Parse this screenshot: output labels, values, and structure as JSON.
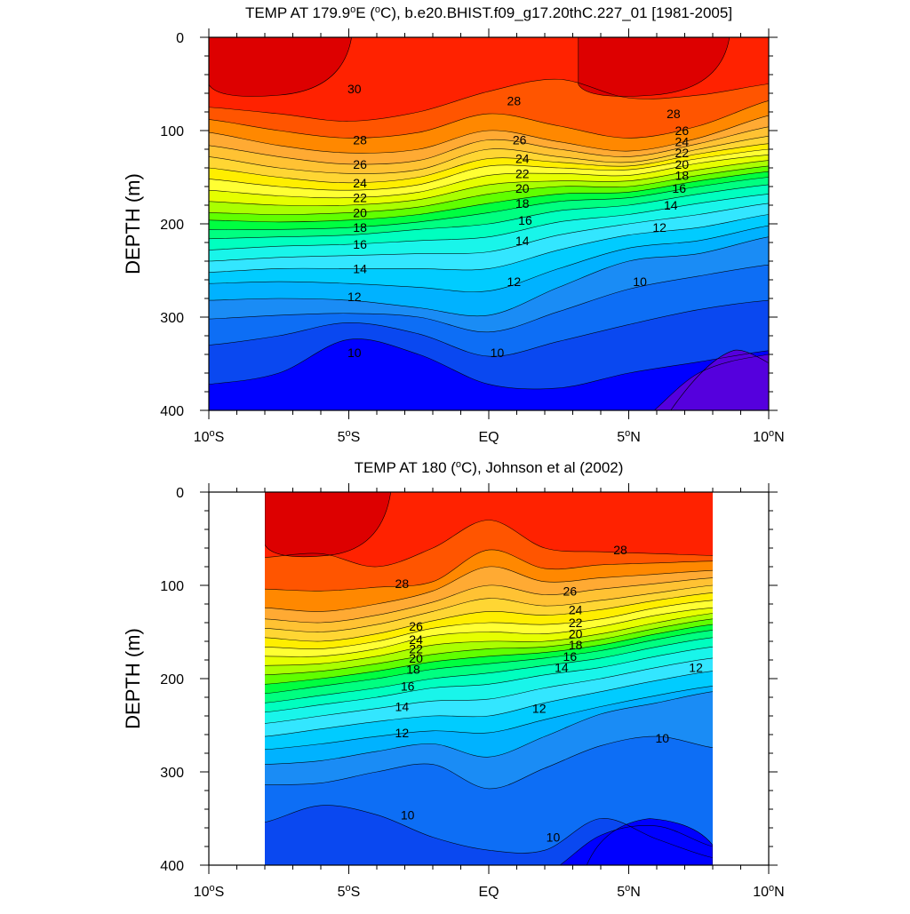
{
  "chart_data": [
    {
      "type": "contour",
      "title": "TEMP AT 179.9°E (°C), b.e20.BHIST.f09_g17.20thC.227_01 [1981-2005]",
      "ylabel": "DEPTH (m)",
      "xlabel": "",
      "xlim": [
        -10,
        10
      ],
      "ylim": [
        400,
        0
      ],
      "y_inverted": true,
      "x_ticks": [
        {
          "value": -10,
          "label": "10°S"
        },
        {
          "value": -5,
          "label": "5°S"
        },
        {
          "value": 0,
          "label": "EQ"
        },
        {
          "value": 5,
          "label": "5°N"
        },
        {
          "value": 10,
          "label": "10°N"
        }
      ],
      "y_ticks": [
        {
          "value": 0,
          "label": "0"
        },
        {
          "value": 100,
          "label": "100"
        },
        {
          "value": 200,
          "label": "200"
        },
        {
          "value": 300,
          "label": "300"
        },
        {
          "value": 400,
          "label": "400"
        }
      ],
      "data_extent_x": [
        -10,
        10
      ],
      "contour_interval": 1,
      "isotherm_depths": {
        "x": [
          -10,
          -7.5,
          -5,
          -2.5,
          0,
          2.5,
          5,
          7.5,
          10
        ],
        "series": [
          {
            "temp": 29,
            "depth": [
              75,
              82,
              90,
              80,
              58,
              45,
              65,
              62,
              50
            ]
          },
          {
            "temp": 28,
            "depth": [
              88,
              100,
              108,
              102,
              82,
              95,
              108,
              95,
              68
            ]
          },
          {
            "temp": 27,
            "depth": [
              102,
              116,
              124,
              120,
              100,
              112,
              122,
              108,
              84
            ]
          },
          {
            "temp": 26,
            "depth": [
              116,
              128,
              136,
              132,
              110,
              120,
              128,
              114,
              96
            ]
          },
          {
            "temp": 25,
            "depth": [
              128,
              140,
              146,
              142,
              120,
              128,
              134,
              120,
              106
            ]
          },
          {
            "temp": 24,
            "depth": [
              140,
              150,
              156,
              150,
              130,
              134,
              138,
              125,
              114
            ]
          },
          {
            "temp": 23,
            "depth": [
              152,
              160,
              164,
              158,
              138,
              140,
              142,
              130,
              120
            ]
          },
          {
            "temp": 22,
            "depth": [
              164,
              170,
              172,
              166,
              148,
              146,
              148,
              135,
              126
            ]
          },
          {
            "temp": 21,
            "depth": [
              176,
              180,
              180,
              174,
              158,
              154,
              154,
              142,
              132
            ]
          },
          {
            "temp": 20,
            "depth": [
              188,
              190,
              188,
              182,
              168,
              160,
              160,
              148,
              138
            ]
          },
          {
            "temp": 19,
            "depth": [
              196,
              198,
              196,
              190,
              178,
              168,
              166,
              154,
              144
            ]
          },
          {
            "temp": 18,
            "depth": [
              206,
              206,
              204,
              198,
              188,
              176,
              172,
              160,
              150
            ]
          },
          {
            "temp": 17,
            "depth": [
              216,
              214,
              212,
              206,
              200,
              186,
              180,
              168,
              158
            ]
          },
          {
            "temp": 16,
            "depth": [
              228,
              224,
              222,
              218,
              214,
              198,
              190,
              178,
              168
            ]
          },
          {
            "temp": 15,
            "depth": [
              240,
              236,
              234,
              232,
              230,
              212,
              200,
              190,
              178
            ]
          },
          {
            "temp": 14,
            "depth": [
              252,
              248,
              248,
              248,
              248,
              228,
              212,
              204,
              190
            ]
          },
          {
            "temp": 13,
            "depth": [
              264,
              262,
              264,
              268,
              272,
              248,
              226,
              218,
              202
            ]
          },
          {
            "temp": 12,
            "depth": [
              282,
              280,
              282,
              290,
              298,
              268,
              240,
              232,
              214
            ]
          },
          {
            "temp": 11,
            "depth": [
              302,
              298,
              296,
              300,
              316,
              294,
              270,
              256,
              244
            ]
          },
          {
            "temp": 10,
            "depth": [
              330,
              320,
              306,
              318,
              342,
              326,
              308,
              292,
              282
            ]
          },
          {
            "temp": 9,
            "depth": [
              372,
              360,
              324,
              340,
              372,
              376,
              360,
              348,
              336
            ]
          },
          {
            "temp": 8,
            "depth": [
              420,
              430,
              400,
              420,
              430,
              430,
              420,
              360,
              340
            ]
          }
        ]
      },
      "contour_labels": [
        {
          "text": "30",
          "x": -4.8,
          "y": 55
        },
        {
          "text": "28",
          "x": -4.6,
          "y": 110
        },
        {
          "text": "26",
          "x": -4.6,
          "y": 136
        },
        {
          "text": "24",
          "x": -4.6,
          "y": 156
        },
        {
          "text": "22",
          "x": -4.6,
          "y": 172
        },
        {
          "text": "20",
          "x": -4.6,
          "y": 188
        },
        {
          "text": "18",
          "x": -4.6,
          "y": 204
        },
        {
          "text": "16",
          "x": -4.6,
          "y": 222
        },
        {
          "text": "14",
          "x": -4.6,
          "y": 248
        },
        {
          "text": "12",
          "x": -4.8,
          "y": 278
        },
        {
          "text": "10",
          "x": -4.8,
          "y": 338
        },
        {
          "text": "28",
          "x": 0.9,
          "y": 68
        },
        {
          "text": "26",
          "x": 1.1,
          "y": 110
        },
        {
          "text": "24",
          "x": 1.2,
          "y": 130
        },
        {
          "text": "22",
          "x": 1.2,
          "y": 146
        },
        {
          "text": "20",
          "x": 1.2,
          "y": 162
        },
        {
          "text": "18",
          "x": 1.2,
          "y": 178
        },
        {
          "text": "16",
          "x": 1.3,
          "y": 196
        },
        {
          "text": "14",
          "x": 1.2,
          "y": 218
        },
        {
          "text": "12",
          "x": 0.9,
          "y": 262
        },
        {
          "text": "10",
          "x": 0.3,
          "y": 338
        },
        {
          "text": "28",
          "x": 6.6,
          "y": 82
        },
        {
          "text": "26",
          "x": 6.9,
          "y": 100
        },
        {
          "text": "24",
          "x": 6.9,
          "y": 112
        },
        {
          "text": "22",
          "x": 6.9,
          "y": 124
        },
        {
          "text": "20",
          "x": 6.9,
          "y": 136
        },
        {
          "text": "18",
          "x": 6.9,
          "y": 148
        },
        {
          "text": "16",
          "x": 6.8,
          "y": 162
        },
        {
          "text": "14",
          "x": 6.5,
          "y": 180
        },
        {
          "text": "12",
          "x": 6.1,
          "y": 204
        },
        {
          "text": "10",
          "x": 5.4,
          "y": 262
        }
      ],
      "warm_pools_30": [
        {
          "x_from": -10,
          "x_to": -4.9,
          "depth_max": 60
        },
        {
          "x_from": 3.2,
          "x_to": 8.6,
          "depth_max": 60
        }
      ],
      "deep_pool_7": {
        "x_from": 6.5,
        "x_to": 10,
        "depth_min": 336
      }
    },
    {
      "type": "contour",
      "title": "TEMP AT 180 (°C), Johnson et al (2002)",
      "ylabel": "DEPTH (m)",
      "xlabel": "",
      "xlim": [
        -10,
        10
      ],
      "ylim": [
        400,
        0
      ],
      "y_inverted": true,
      "x_ticks": [
        {
          "value": -10,
          "label": "10°S"
        },
        {
          "value": -5,
          "label": "5°S"
        },
        {
          "value": 0,
          "label": "EQ"
        },
        {
          "value": 5,
          "label": "5°N"
        },
        {
          "value": 10,
          "label": "10°N"
        }
      ],
      "y_ticks": [
        {
          "value": 0,
          "label": "0"
        },
        {
          "value": 100,
          "label": "100"
        },
        {
          "value": 200,
          "label": "200"
        },
        {
          "value": 300,
          "label": "300"
        },
        {
          "value": 400,
          "label": "400"
        }
      ],
      "data_extent_x": [
        -8,
        8
      ],
      "contour_interval": 1,
      "isotherm_depths": {
        "x": [
          -8,
          -6,
          -4,
          -2,
          0,
          2,
          4,
          6,
          8
        ],
        "series": [
          {
            "temp": 29,
            "depth": [
              70,
              66,
              80,
              60,
              30,
              60,
              64,
              66,
              68
            ]
          },
          {
            "temp": 28,
            "depth": [
              104,
              106,
              102,
              96,
              62,
              82,
              78,
              76,
              74
            ]
          },
          {
            "temp": 27,
            "depth": [
              124,
              128,
              120,
              106,
              80,
              96,
              92,
              88,
              84
            ]
          },
          {
            "temp": 26,
            "depth": [
              136,
              140,
              132,
              118,
              100,
              110,
              104,
              98,
              92
            ]
          },
          {
            "temp": 25,
            "depth": [
              146,
              150,
              142,
              128,
              114,
              122,
              116,
              108,
              100
            ]
          },
          {
            "temp": 24,
            "depth": [
              156,
              160,
              152,
              138,
              128,
              132,
              126,
              116,
              108
            ]
          },
          {
            "temp": 23,
            "depth": [
              166,
              168,
              160,
              146,
              140,
              142,
              136,
              124,
              116
            ]
          },
          {
            "temp": 22,
            "depth": [
              176,
              176,
              168,
              154,
              150,
              152,
              144,
              132,
              124
            ]
          },
          {
            "temp": 21,
            "depth": [
              186,
              184,
              176,
              164,
              160,
              160,
              152,
              140,
              130
            ]
          },
          {
            "temp": 20,
            "depth": [
              196,
              192,
              184,
              174,
              168,
              166,
              158,
              146,
              136
            ]
          },
          {
            "temp": 19,
            "depth": [
              206,
              200,
              192,
              182,
              176,
              172,
              164,
              152,
              142
            ]
          },
          {
            "temp": 18,
            "depth": [
              216,
              208,
              200,
              190,
              184,
              178,
              170,
              158,
              148
            ]
          },
          {
            "temp": 17,
            "depth": [
              226,
              218,
              210,
              200,
              194,
              186,
              178,
              166,
              156
            ]
          },
          {
            "temp": 16,
            "depth": [
              236,
              228,
              220,
              210,
              206,
              196,
              188,
              176,
              166
            ]
          },
          {
            "temp": 15,
            "depth": [
              248,
              240,
              232,
              224,
              222,
              210,
              200,
              188,
              178
            ]
          },
          {
            "temp": 14,
            "depth": [
              262,
              254,
              246,
              240,
              240,
              226,
              214,
              202,
              192
            ]
          },
          {
            "temp": 13,
            "depth": [
              276,
              270,
              262,
              256,
              258,
              244,
              230,
              218,
              208
            ]
          },
          {
            "temp": 12,
            "depth": [
              292,
              288,
              278,
              270,
              284,
              262,
              238,
              226,
              214
            ]
          },
          {
            "temp": 11,
            "depth": [
              314,
              312,
              300,
              292,
              318,
              296,
              272,
              262,
              274
            ]
          },
          {
            "temp": 10,
            "depth": [
              354,
              336,
              346,
              370,
              384,
              384,
              350,
              372,
              392
            ]
          },
          {
            "temp": 9,
            "depth": [
              420,
              420,
              420,
              420,
              420,
              410,
              368,
              358,
              380
            ]
          }
        ]
      },
      "contour_labels": [
        {
          "text": "28",
          "x": -3.1,
          "y": 98
        },
        {
          "text": "26",
          "x": -2.6,
          "y": 144
        },
        {
          "text": "24",
          "x": -2.6,
          "y": 158
        },
        {
          "text": "22",
          "x": -2.6,
          "y": 168
        },
        {
          "text": "20",
          "x": -2.6,
          "y": 178
        },
        {
          "text": "18",
          "x": -2.7,
          "y": 190
        },
        {
          "text": "16",
          "x": -2.9,
          "y": 208
        },
        {
          "text": "14",
          "x": -3.1,
          "y": 230
        },
        {
          "text": "12",
          "x": -3.1,
          "y": 258
        },
        {
          "text": "10",
          "x": -2.9,
          "y": 346
        },
        {
          "text": "28",
          "x": 4.7,
          "y": 62
        },
        {
          "text": "26",
          "x": 2.9,
          "y": 106
        },
        {
          "text": "24",
          "x": 3.1,
          "y": 126
        },
        {
          "text": "22",
          "x": 3.1,
          "y": 140
        },
        {
          "text": "20",
          "x": 3.1,
          "y": 152
        },
        {
          "text": "18",
          "x": 3.1,
          "y": 164
        },
        {
          "text": "16",
          "x": 2.9,
          "y": 176
        },
        {
          "text": "14",
          "x": 2.6,
          "y": 188
        },
        {
          "text": "12",
          "x": 1.8,
          "y": 232
        },
        {
          "text": "10",
          "x": 6.2,
          "y": 264
        },
        {
          "text": "10",
          "x": 2.3,
          "y": 370
        },
        {
          "text": "12",
          "x": 7.4,
          "y": 188
        }
      ],
      "warm_pools_30": [
        {
          "x_from": -8,
          "x_to": -3.5,
          "depth_max": 66
        },
        {
          "x_from": -0.2,
          "x_to": 0.8,
          "depth_max": 0
        }
      ],
      "deep_pool_8": {
        "x_from": 3.5,
        "x_to": 8,
        "depth_min": 350
      }
    }
  ],
  "colormap": {
    "7": "#5500dd",
    "8": "#0000ff",
    "9": "#0a48f0",
    "10": "#0d6ef5",
    "11": "#1a8cf5",
    "12": "#00b2ff",
    "13": "#00ccff",
    "14": "#33e6ff",
    "15": "#19f5ea",
    "16": "#00ffbf",
    "17": "#00ff80",
    "18": "#00ff40",
    "19": "#60ff00",
    "20": "#aaff00",
    "21": "#e6ff00",
    "22": "#ffff33",
    "23": "#ffee00",
    "24": "#ffd633",
    "25": "#ffc233",
    "26": "#ffaa33",
    "27": "#ff8800",
    "28": "#ff5500",
    "29": "#ff2200",
    "30": "#dd0000"
  }
}
